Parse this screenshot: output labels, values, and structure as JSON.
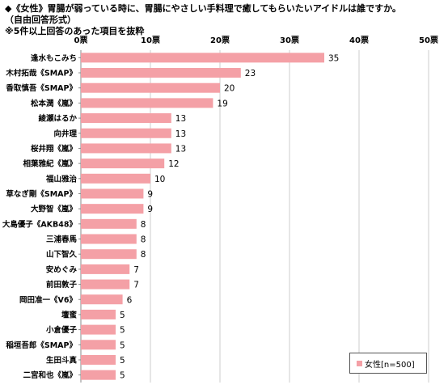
{
  "header": {
    "line1": "◆《女性》胃腸が弱っている時に、胃腸にやさしい手料理で癒してもらいたいアイドルは誰ですか。",
    "line2": "（自由回答形式）",
    "line3": "※5件以上回答のあった項目を抜粋"
  },
  "colors": {
    "bar": "#f4a0a6",
    "grid": "#cccccc",
    "axis": "#888888"
  },
  "chart_data": {
    "type": "bar",
    "orientation": "horizontal",
    "categories": [
      "逢水もこみち",
      "木村拓哉《SMAP》",
      "香取慎吾《SMAP》",
      "松本潤《嵐》",
      "綾瀬はるか",
      "向井理",
      "桜井翔《嵐》",
      "相葉雅紀《嵐》",
      "福山雅治",
      "草なぎ剛《SMAP》",
      "大野智《嵐》",
      "大島優子《AKB48》",
      "三浦春馬",
      "山下智久",
      "安めぐみ",
      "前田敦子",
      "岡田准一《V6》",
      "壇蜜",
      "小倉優子",
      "稲垣吾郎《SMAP》",
      "生田斗真",
      "二宮和也《嵐》"
    ],
    "series": [
      {
        "name": "女性[n=500]",
        "values": [
          35,
          23,
          20,
          19,
          13,
          13,
          13,
          12,
          10,
          9,
          9,
          8,
          8,
          8,
          7,
          7,
          6,
          5,
          5,
          5,
          5,
          5
        ]
      }
    ],
    "xlim": [
      0,
      50
    ],
    "xticks": [
      "0票",
      "10票",
      "20票",
      "30票",
      "40票",
      "50票"
    ],
    "tick_values": [
      0,
      10,
      20,
      30,
      40,
      50
    ],
    "grid": true,
    "legend_position": "bottom-right"
  }
}
